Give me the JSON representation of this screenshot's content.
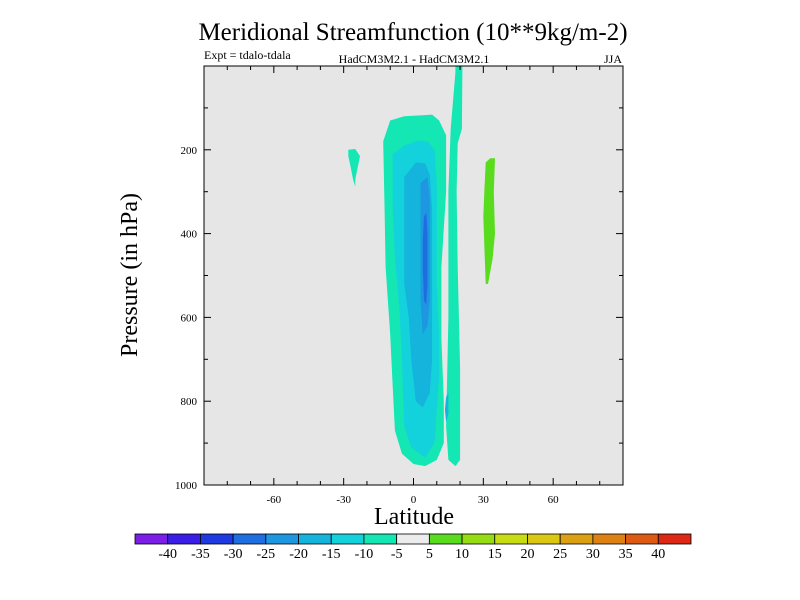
{
  "chart_data": {
    "type": "contour",
    "title": "Meridional Streamfunction (10**9kg/m-2)",
    "subtitle_left": "Expt = tdalo-tdala",
    "subtitle_center": "HadCM3M2.1 - HadCM3M2.1",
    "subtitle_right": "JJA",
    "xlabel": "Latitude",
    "ylabel": "Pressure (in hPa)",
    "xlim": [
      -90,
      90
    ],
    "ylim": [
      0,
      1000
    ],
    "y_inverted": true,
    "x_ticks": [
      {
        "value": -60,
        "label": "-60"
      },
      {
        "value": -30,
        "label": "-30"
      },
      {
        "value": 0,
        "label": "0"
      },
      {
        "value": 30,
        "label": "30"
      },
      {
        "value": 60,
        "label": "60"
      }
    ],
    "y_ticks": [
      {
        "value": 200,
        "label": "200"
      },
      {
        "value": 400,
        "label": "400"
      },
      {
        "value": 600,
        "label": "600"
      },
      {
        "value": 800,
        "label": "800"
      },
      {
        "value": 1000,
        "label": "1000"
      }
    ],
    "background_color": "#e6e6e6",
    "colorbar": {
      "colors": [
        "#7a1ee8",
        "#3a1ee8",
        "#1e3ae0",
        "#1e6ee0",
        "#1e96e0",
        "#14b4dc",
        "#14d2dc",
        "#14e6b4",
        "#ececec",
        "#5adc1e",
        "#96dc14",
        "#c8dc14",
        "#dcc814",
        "#dca014",
        "#dc8214",
        "#dc5a14",
        "#dc2814"
      ],
      "labels": [
        "-40",
        "-35",
        "-30",
        "-25",
        "-20",
        "-15",
        "-10",
        "-5",
        "5",
        "10",
        "15",
        "20",
        "25",
        "30",
        "35",
        "40"
      ]
    },
    "regions": [
      {
        "level": "-5",
        "color": "#14e6b4",
        "points": [
          [
            18,
            0
          ],
          [
            21,
            0
          ],
          [
            20.8,
            150
          ],
          [
            19,
            185
          ],
          [
            18.5,
            300
          ],
          [
            19,
            480
          ],
          [
            20,
            720
          ],
          [
            20,
            940
          ],
          [
            18,
            955
          ],
          [
            15,
            940
          ],
          [
            14,
            860
          ],
          [
            15,
            600
          ],
          [
            15,
            300
          ],
          [
            16,
            150
          ],
          [
            18,
            15
          ]
        ]
      },
      {
        "level": "-5",
        "color": "#14e6b4",
        "points": [
          [
            -13,
            180
          ],
          [
            -10,
            130
          ],
          [
            -4,
            120
          ],
          [
            3,
            118
          ],
          [
            8,
            116
          ],
          [
            11,
            130
          ],
          [
            14,
            165
          ],
          [
            14,
            300
          ],
          [
            12,
            480
          ],
          [
            12,
            650
          ],
          [
            13,
            800
          ],
          [
            13,
            900
          ],
          [
            10,
            940
          ],
          [
            5,
            955
          ],
          [
            0,
            950
          ],
          [
            -5,
            925
          ],
          [
            -8,
            870
          ],
          [
            -9,
            760
          ],
          [
            -10,
            640
          ],
          [
            -12,
            480
          ],
          [
            -12.5,
            320
          ]
        ]
      },
      {
        "level": "-5",
        "color": "#14e6b4",
        "points": [
          [
            -28,
            200
          ],
          [
            -25,
            198
          ],
          [
            -23,
            215
          ],
          [
            -25,
            270
          ],
          [
            -25,
            288
          ],
          [
            -26,
            270
          ],
          [
            -27,
            240
          ],
          [
            -28,
            215
          ]
        ]
      },
      {
        "level": "-10",
        "color": "#14d2dc",
        "points": [
          [
            -9,
            210
          ],
          [
            -4,
            190
          ],
          [
            2,
            178
          ],
          [
            6,
            180
          ],
          [
            9,
            200
          ],
          [
            10,
            280
          ],
          [
            10,
            400
          ],
          [
            10,
            520
          ],
          [
            11,
            640
          ],
          [
            11,
            740
          ],
          [
            10,
            820
          ],
          [
            9,
            900
          ],
          [
            5,
            935
          ],
          [
            -1,
            910
          ],
          [
            -4,
            860
          ],
          [
            -5,
            700
          ],
          [
            -6,
            580
          ],
          [
            -8,
            460
          ],
          [
            -9,
            330
          ]
        ]
      },
      {
        "level": "-15",
        "color": "#14b4dc",
        "points": [
          [
            -4,
            265
          ],
          [
            1,
            230
          ],
          [
            5,
            232
          ],
          [
            7,
            260
          ],
          [
            8,
            340
          ],
          [
            8,
            460
          ],
          [
            8,
            580
          ],
          [
            8,
            700
          ],
          [
            7,
            780
          ],
          [
            4,
            815
          ],
          [
            1,
            800
          ],
          [
            -1,
            700
          ],
          [
            -2,
            600
          ],
          [
            -4,
            520
          ],
          [
            -4,
            420
          ]
        ]
      },
      {
        "level": "-20",
        "color": "#1e96e0",
        "points": [
          [
            3,
            280
          ],
          [
            6,
            265
          ],
          [
            7,
            320
          ],
          [
            7,
            440
          ],
          [
            7,
            560
          ],
          [
            6,
            620
          ],
          [
            4,
            640
          ],
          [
            3,
            560
          ],
          [
            3,
            440
          ]
        ]
      },
      {
        "level": "-25",
        "color": "#1e6ee0",
        "points": [
          [
            4.5,
            360
          ],
          [
            5.5,
            350
          ],
          [
            6,
            400
          ],
          [
            6,
            520
          ],
          [
            5.5,
            570
          ],
          [
            4.5,
            560
          ],
          [
            4,
            480
          ],
          [
            4,
            420
          ]
        ]
      },
      {
        "level": "-15",
        "color": "#14b4dc",
        "points": [
          [
            14,
            790
          ],
          [
            15,
            780
          ],
          [
            15,
            830
          ],
          [
            14,
            850
          ],
          [
            13.5,
            820
          ]
        ]
      },
      {
        "level": "10",
        "color": "#5adc1e",
        "points": [
          [
            31,
            230
          ],
          [
            33,
            220
          ],
          [
            35,
            220
          ],
          [
            34.5,
            300
          ],
          [
            35,
            400
          ],
          [
            34,
            460
          ],
          [
            32,
            520
          ],
          [
            31,
            520
          ],
          [
            30.5,
            440
          ],
          [
            30,
            360
          ],
          [
            30.5,
            290
          ]
        ]
      }
    ]
  }
}
